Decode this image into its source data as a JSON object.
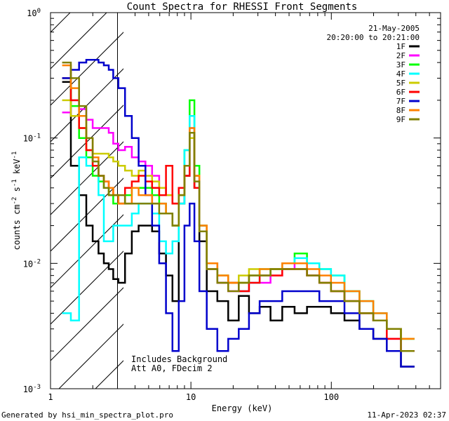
{
  "chart_data": {
    "type": "line",
    "step": true,
    "title": "Count Spectra for RHESSI Front Segments",
    "xlabel": "Energy (keV)",
    "ylabel": "counts cm^-2 s^-1 keV^-1",
    "xscale": "log",
    "yscale": "log",
    "xlim": [
      1,
      600
    ],
    "ylim": [
      0.001,
      1.0
    ],
    "xticks": [
      {
        "v": 1,
        "label": "1"
      },
      {
        "v": 10,
        "label": "10"
      },
      {
        "v": 100,
        "label": "100"
      }
    ],
    "yticks": [
      {
        "v": 1.0,
        "base": "10",
        "exp": "0"
      },
      {
        "v": 0.1,
        "base": "10",
        "exp": "-1"
      },
      {
        "v": 0.01,
        "base": "10",
        "exp": "-2"
      },
      {
        "v": 0.001,
        "base": "10",
        "exp": "-3"
      }
    ],
    "date": "21-May-2005",
    "time_range": "20:20:00 to 20:21:00",
    "shaded_region_max_keV": 3.0,
    "annotation_line1": "Includes Background",
    "annotation_line2": "Att A0, FDecim 2",
    "series": [
      {
        "name": "1F",
        "color": "#000000",
        "x": [
          1.3,
          1.5,
          1.7,
          1.9,
          2.1,
          2.3,
          2.5,
          2.7,
          2.9,
          3.2,
          3.6,
          4.0,
          4.5,
          5.0,
          5.6,
          6.3,
          7.0,
          7.8,
          8.6,
          9.4,
          10.2,
          11.0,
          12,
          14,
          17,
          20,
          24,
          28,
          34,
          40,
          50,
          60,
          75,
          90,
          110,
          140,
          180,
          220,
          280,
          350
        ],
        "y": [
          0.28,
          0.06,
          0.035,
          0.02,
          0.015,
          0.012,
          0.01,
          0.009,
          0.0075,
          0.007,
          0.012,
          0.018,
          0.02,
          0.02,
          0.018,
          0.012,
          0.008,
          0.005,
          0.03,
          0.05,
          0.11,
          0.04,
          0.015,
          0.006,
          0.005,
          0.0035,
          0.0055,
          0.004,
          0.0045,
          0.0035,
          0.0045,
          0.004,
          0.0045,
          0.0045,
          0.004,
          0.0035,
          0.003,
          0.0025,
          0.002,
          0.0015
        ]
      },
      {
        "name": "2F",
        "color": "#ff00ff",
        "x": [
          1.3,
          1.5,
          1.7,
          1.9,
          2.1,
          2.3,
          2.5,
          2.7,
          2.9,
          3.2,
          3.6,
          4.0,
          4.5,
          5.0,
          5.6,
          6.3,
          7.0,
          7.8,
          8.6,
          9.4,
          10.2,
          11.0,
          12,
          14,
          17,
          20,
          24,
          28,
          34,
          40,
          50,
          60,
          75,
          90,
          110,
          140,
          180,
          220,
          280,
          350
        ],
        "y": [
          0.16,
          0.2,
          0.17,
          0.14,
          0.12,
          0.12,
          0.12,
          0.11,
          0.09,
          0.08,
          0.085,
          0.07,
          0.065,
          0.06,
          0.05,
          0.04,
          0.035,
          0.03,
          0.04,
          0.06,
          0.12,
          0.05,
          0.02,
          0.01,
          0.007,
          0.006,
          0.006,
          0.007,
          0.007,
          0.008,
          0.009,
          0.01,
          0.008,
          0.007,
          0.006,
          0.005,
          0.004,
          0.0035,
          0.0025,
          0.002
        ]
      },
      {
        "name": "3F",
        "color": "#00ff00",
        "x": [
          1.3,
          1.5,
          1.7,
          1.9,
          2.1,
          2.3,
          2.5,
          2.7,
          2.9,
          3.2,
          3.6,
          4.0,
          4.5,
          5.0,
          5.6,
          6.3,
          7.0,
          7.8,
          8.6,
          9.4,
          10.2,
          11.0,
          12,
          14,
          17,
          20,
          24,
          28,
          34,
          40,
          50,
          60,
          75,
          90,
          110,
          140,
          180,
          220,
          280,
          350
        ],
        "y": [
          0.3,
          0.18,
          0.1,
          0.07,
          0.05,
          0.045,
          0.04,
          0.035,
          0.03,
          0.03,
          0.035,
          0.04,
          0.04,
          0.04,
          0.035,
          0.03,
          0.025,
          0.02,
          0.04,
          0.08,
          0.2,
          0.06,
          0.02,
          0.01,
          0.008,
          0.007,
          0.007,
          0.008,
          0.009,
          0.009,
          0.01,
          0.012,
          0.01,
          0.009,
          0.008,
          0.006,
          0.005,
          0.004,
          0.003,
          0.0025
        ]
      },
      {
        "name": "4F",
        "color": "#00ffff",
        "x": [
          1.3,
          1.5,
          1.7,
          1.9,
          2.1,
          2.3,
          2.5,
          2.7,
          2.9,
          3.2,
          3.6,
          4.0,
          4.5,
          5.0,
          5.6,
          6.3,
          7.0,
          7.8,
          8.6,
          9.4,
          10.2,
          11.0,
          12,
          14,
          17,
          20,
          24,
          28,
          34,
          40,
          50,
          60,
          75,
          90,
          110,
          140,
          180,
          220,
          280,
          350
        ],
        "y": [
          0.004,
          0.0035,
          0.07,
          0.06,
          0.06,
          0.035,
          0.015,
          0.015,
          0.02,
          0.02,
          0.02,
          0.025,
          0.03,
          0.03,
          0.025,
          0.015,
          0.012,
          0.015,
          0.03,
          0.08,
          0.15,
          0.05,
          0.02,
          0.009,
          0.007,
          0.007,
          0.006,
          0.007,
          0.008,
          0.009,
          0.01,
          0.011,
          0.01,
          0.009,
          0.008,
          0.006,
          0.005,
          0.004,
          0.003,
          0.0025
        ]
      },
      {
        "name": "5F",
        "color": "#cccc00",
        "x": [
          1.3,
          1.5,
          1.7,
          1.9,
          2.1,
          2.3,
          2.5,
          2.7,
          2.9,
          3.2,
          3.6,
          4.0,
          4.5,
          5.0,
          5.6,
          6.3,
          7.0,
          7.8,
          8.6,
          9.4,
          10.2,
          11.0,
          12,
          14,
          17,
          20,
          24,
          28,
          34,
          40,
          50,
          60,
          75,
          90,
          110,
          140,
          180,
          220,
          280,
          350
        ],
        "y": [
          0.2,
          0.15,
          0.12,
          0.08,
          0.075,
          0.075,
          0.075,
          0.07,
          0.065,
          0.06,
          0.055,
          0.05,
          0.055,
          0.05,
          0.045,
          0.04,
          0.035,
          0.03,
          0.035,
          0.06,
          0.1,
          0.05,
          0.02,
          0.01,
          0.008,
          0.007,
          0.008,
          0.009,
          0.008,
          0.009,
          0.009,
          0.009,
          0.008,
          0.007,
          0.006,
          0.005,
          0.004,
          0.0035,
          0.003,
          0.0025
        ]
      },
      {
        "name": "6F",
        "color": "#ff0000",
        "x": [
          1.3,
          1.5,
          1.7,
          1.9,
          2.1,
          2.3,
          2.5,
          2.7,
          2.9,
          3.2,
          3.6,
          4.0,
          4.5,
          5.0,
          5.6,
          6.3,
          7.0,
          7.8,
          8.6,
          9.4,
          10.2,
          11.0,
          12,
          14,
          17,
          20,
          24,
          28,
          34,
          40,
          50,
          60,
          75,
          90,
          110,
          140,
          180,
          220,
          280,
          350
        ],
        "y": [
          0.3,
          0.2,
          0.12,
          0.08,
          0.06,
          0.05,
          0.045,
          0.04,
          0.035,
          0.03,
          0.04,
          0.045,
          0.05,
          0.045,
          0.04,
          0.035,
          0.06,
          0.03,
          0.04,
          0.05,
          0.11,
          0.04,
          0.018,
          0.009,
          0.007,
          0.007,
          0.006,
          0.007,
          0.008,
          0.008,
          0.009,
          0.009,
          0.008,
          0.007,
          0.006,
          0.005,
          0.004,
          0.0035,
          0.0025,
          0.002
        ]
      },
      {
        "name": "7F",
        "color": "#0000cc",
        "x": [
          1.3,
          1.5,
          1.7,
          1.9,
          2.1,
          2.3,
          2.5,
          2.7,
          2.9,
          3.2,
          3.6,
          4.0,
          4.5,
          5.0,
          5.6,
          6.3,
          7.0,
          7.8,
          8.6,
          9.4,
          10.2,
          11.0,
          12,
          14,
          17,
          20,
          24,
          28,
          34,
          40,
          50,
          60,
          75,
          90,
          110,
          140,
          180,
          220,
          280,
          350
        ],
        "y": [
          0.3,
          0.35,
          0.4,
          0.42,
          0.42,
          0.4,
          0.38,
          0.35,
          0.3,
          0.25,
          0.15,
          0.1,
          0.06,
          0.035,
          0.02,
          0.01,
          0.004,
          0.002,
          0.005,
          0.02,
          0.03,
          0.015,
          0.006,
          0.003,
          0.002,
          0.0025,
          0.003,
          0.004,
          0.005,
          0.005,
          0.006,
          0.006,
          0.006,
          0.005,
          0.005,
          0.004,
          0.003,
          0.0025,
          0.002,
          0.0015
        ]
      },
      {
        "name": "8F",
        "color": "#ff8000",
        "x": [
          1.3,
          1.5,
          1.7,
          1.9,
          2.1,
          2.3,
          2.5,
          2.7,
          2.9,
          3.2,
          3.6,
          4.0,
          4.5,
          5.0,
          5.6,
          6.3,
          7.0,
          7.8,
          8.6,
          9.4,
          10.2,
          11.0,
          12,
          14,
          17,
          20,
          24,
          28,
          34,
          40,
          50,
          60,
          75,
          90,
          110,
          140,
          180,
          220,
          280,
          350
        ],
        "y": [
          0.38,
          0.25,
          0.15,
          0.1,
          0.07,
          0.05,
          0.045,
          0.04,
          0.035,
          0.03,
          0.03,
          0.04,
          0.035,
          0.035,
          0.03,
          0.03,
          0.025,
          0.02,
          0.035,
          0.06,
          0.12,
          0.05,
          0.02,
          0.01,
          0.008,
          0.007,
          0.007,
          0.008,
          0.009,
          0.009,
          0.01,
          0.01,
          0.009,
          0.008,
          0.007,
          0.006,
          0.005,
          0.004,
          0.003,
          0.0025
        ]
      },
      {
        "name": "9F",
        "color": "#808000",
        "x": [
          1.3,
          1.5,
          1.7,
          1.9,
          2.1,
          2.3,
          2.5,
          2.7,
          2.9,
          3.2,
          3.6,
          4.0,
          4.5,
          5.0,
          5.6,
          6.3,
          7.0,
          7.8,
          8.6,
          9.4,
          10.2,
          11.0,
          12,
          14,
          17,
          20,
          24,
          28,
          34,
          40,
          50,
          60,
          75,
          90,
          110,
          140,
          180,
          220,
          280,
          350
        ],
        "y": [
          0.4,
          0.3,
          0.18,
          0.1,
          0.065,
          0.05,
          0.04,
          0.035,
          0.035,
          0.035,
          0.03,
          0.03,
          0.03,
          0.03,
          0.03,
          0.025,
          0.025,
          0.02,
          0.035,
          0.06,
          0.11,
          0.045,
          0.018,
          0.009,
          0.007,
          0.006,
          0.007,
          0.008,
          0.008,
          0.009,
          0.009,
          0.009,
          0.008,
          0.007,
          0.006,
          0.005,
          0.004,
          0.0035,
          0.003,
          0.002
        ]
      }
    ]
  },
  "footer": {
    "generated_by": "Generated by hsi_min_spectra_plot.pro",
    "timestamp": "11-Apr-2023 02:37"
  }
}
